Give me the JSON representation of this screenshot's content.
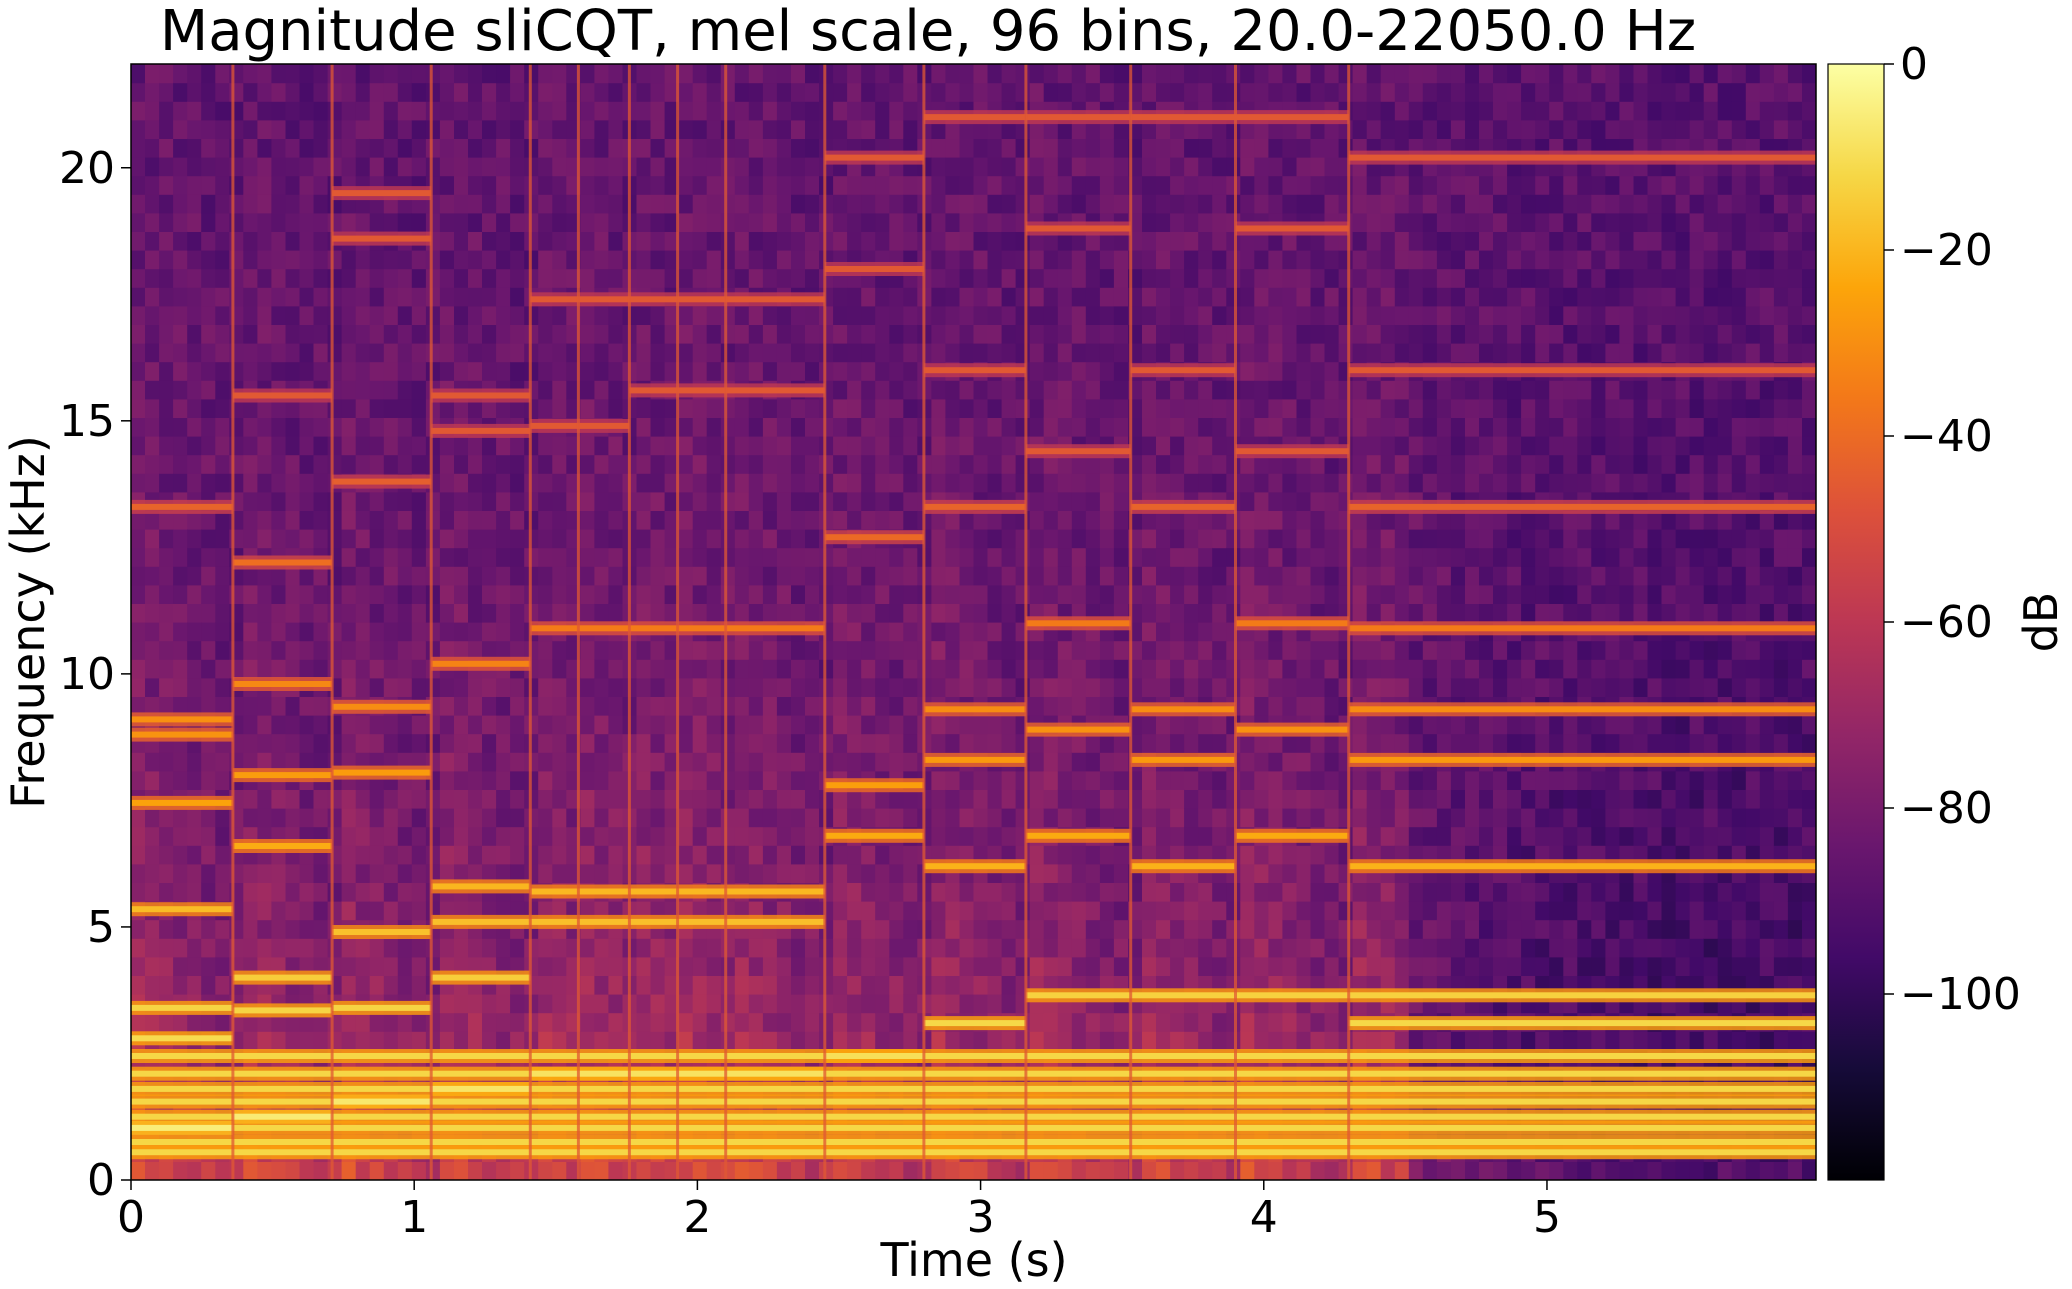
{
  "chart_data": {
    "type": "heatmap",
    "title": "Magnitude sliCQT, mel scale, 96 bins, 20.0-22050.0 Hz",
    "xlabel": "Time (s)",
    "ylabel": "Frequency (kHz)",
    "colorbar_label": "dB",
    "colormap": "inferno",
    "xlim": [
      0,
      5.95
    ],
    "ylim": [
      0,
      22.05
    ],
    "clim": [
      -120,
      0
    ],
    "x_ticks": [
      0,
      1,
      2,
      3,
      4,
      5
    ],
    "x_tick_labels": [
      "0",
      "1",
      "2",
      "3",
      "4",
      "5"
    ],
    "y_ticks": [
      0,
      5,
      10,
      15,
      20
    ],
    "y_tick_labels": [
      "0",
      "5",
      "10",
      "15",
      "20"
    ],
    "colorbar_ticks": [
      0,
      -20,
      -40,
      -60,
      -80,
      -100
    ],
    "colorbar_tick_labels": [
      "0",
      "−20",
      "−40",
      "−60",
      "−80",
      "−100"
    ],
    "grid": false,
    "note_onsets_s": [
      0,
      0.36,
      0.71,
      1.06,
      1.41,
      1.58,
      1.76,
      1.93,
      2.1,
      2.45,
      2.8,
      3.16,
      3.53,
      3.9,
      4.3
    ],
    "segments": [
      {
        "start": 0.0,
        "end": 0.36,
        "partials_khz": [
          1.03,
          2.8,
          3.4,
          5.35,
          7.45,
          8.8,
          9.1,
          13.3
        ]
      },
      {
        "start": 0.36,
        "end": 0.71,
        "partials_khz": [
          1.25,
          3.35,
          4.0,
          6.6,
          8.0,
          9.8,
          12.2,
          15.5
        ]
      },
      {
        "start": 0.71,
        "end": 1.06,
        "partials_khz": [
          1.55,
          3.4,
          4.9,
          8.05,
          9.35,
          13.8,
          18.6,
          19.5
        ]
      },
      {
        "start": 1.06,
        "end": 1.41,
        "partials_khz": [
          1.8,
          4.0,
          5.1,
          5.8,
          10.2,
          14.8,
          15.5
        ]
      },
      {
        "start": 1.41,
        "end": 1.58,
        "partials_khz": [
          2.1,
          5.1,
          5.7,
          10.9,
          14.9,
          17.4
        ]
      },
      {
        "start": 1.58,
        "end": 1.76,
        "partials_khz": [
          2.1,
          5.1,
          5.7,
          10.9,
          14.9,
          17.4
        ]
      },
      {
        "start": 1.76,
        "end": 1.93,
        "partials_khz": [
          2.1,
          5.1,
          5.7,
          10.9,
          15.6,
          17.4
        ]
      },
      {
        "start": 1.93,
        "end": 2.1,
        "partials_khz": [
          2.1,
          5.1,
          5.7,
          10.9,
          15.6,
          17.4
        ]
      },
      {
        "start": 2.1,
        "end": 2.45,
        "partials_khz": [
          2.1,
          5.1,
          5.7,
          10.9,
          15.6,
          17.4
        ]
      },
      {
        "start": 2.45,
        "end": 2.8,
        "partials_khz": [
          2.45,
          6.8,
          7.8,
          12.7,
          18.0,
          20.2
        ]
      },
      {
        "start": 2.8,
        "end": 3.16,
        "partials_khz": [
          3.1,
          6.2,
          8.3,
          9.3,
          13.3,
          16.0,
          21.0
        ]
      },
      {
        "start": 3.16,
        "end": 3.53,
        "partials_khz": [
          3.65,
          6.8,
          8.9,
          11.0,
          14.4,
          18.8,
          21.0
        ]
      },
      {
        "start": 3.53,
        "end": 3.9,
        "partials_khz": [
          3.65,
          6.2,
          8.3,
          9.3,
          13.3,
          16.0,
          21.0
        ]
      },
      {
        "start": 3.9,
        "end": 4.3,
        "partials_khz": [
          3.65,
          6.8,
          8.9,
          11.0,
          14.4,
          18.8,
          21.0
        ]
      },
      {
        "start": 4.3,
        "end": 5.95,
        "partials_khz": [
          3.1,
          3.65,
          6.2,
          8.3,
          9.3,
          10.9,
          13.3,
          16.0,
          20.2
        ]
      }
    ],
    "bass_partials_khz": [
      0.55,
      0.75,
      1.03,
      1.25,
      1.55,
      1.8,
      2.1,
      2.45
    ]
  }
}
